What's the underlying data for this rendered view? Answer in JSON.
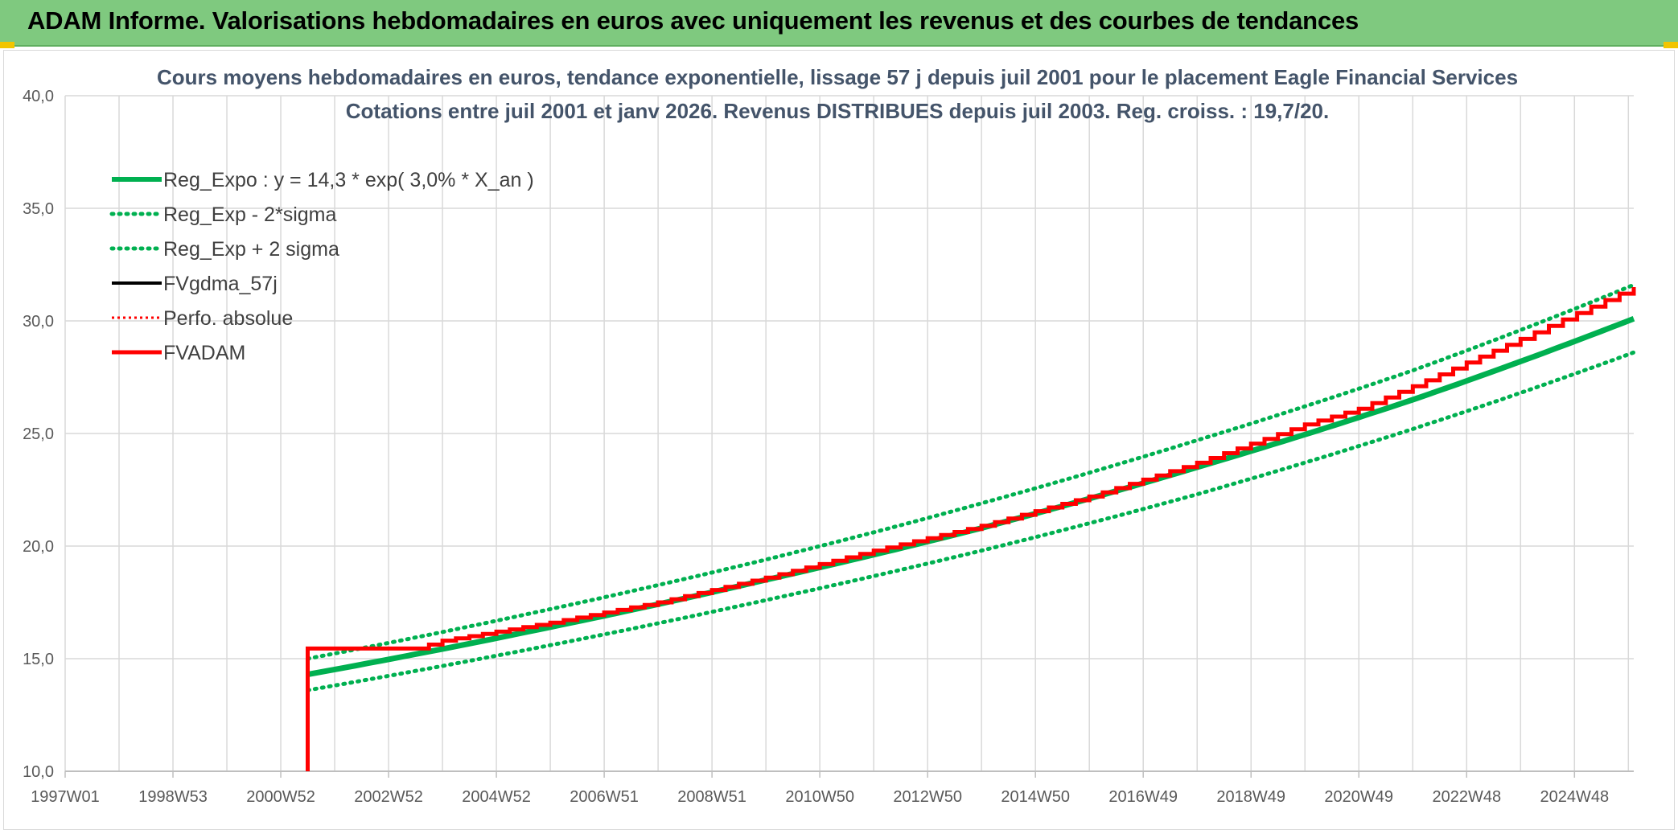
{
  "header": {
    "title": "ADAM Informe. Valorisations hebdomadaires en euros avec uniquement les revenus et des courbes de tendances"
  },
  "colors": {
    "banner": "#7fc97f",
    "green": "#00b050",
    "red": "#ff0000",
    "black": "#000000",
    "title": "#44546a"
  },
  "chart_data": {
    "type": "line",
    "title": "Cours moyens hebdomadaires en euros, tendance exponentielle, lissage 57 j depuis juil 2001 pour le placement Eagle Financial Services",
    "subtitle": "Cotations entre juil 2001 et janv 2026. Revenus DISTRIBUES depuis juil 2003. Reg. croiss. : 19,7/20.",
    "xlabel": "",
    "ylabel": "",
    "x_ticks": [
      "1997W01",
      "1998W53",
      "2000W52",
      "2002W52",
      "2004W52",
      "2006W51",
      "2008W51",
      "2010W50",
      "2012W50",
      "2014W50",
      "2016W49",
      "2018W49",
      "2020W49",
      "2022W48",
      "2024W48"
    ],
    "x_range_years": [
      1997.0,
      2026.1
    ],
    "y_ticks": [
      "10,0",
      "15,0",
      "20,0",
      "25,0",
      "30,0",
      "35,0",
      "40,0"
    ],
    "ylim": [
      10,
      40
    ],
    "grid": true,
    "legend_position": "top-left",
    "legend": [
      "Reg_Expo : y = 14,3 * exp( 3,0% *  X_an )",
      "Reg_Exp - 2*sigma",
      "Reg_Exp + 2 sigma",
      "FVgdma_57j",
      "Perfo. absolue",
      "FVADAM"
    ],
    "series": [
      {
        "name": "Reg_Expo : y = 14,3 * exp( 3,0% *  X_an )",
        "style": "solid-green",
        "x": [
          2001.5,
          2006,
          2010,
          2014,
          2018,
          2022,
          2026.1
        ],
        "y": [
          14.3,
          16.4,
          18.5,
          20.8,
          23.5,
          26.5,
          30.1
        ]
      },
      {
        "name": "Reg_Exp - 2*sigma",
        "style": "dotted-green",
        "x": [
          2001.5,
          2006,
          2010,
          2014,
          2018,
          2022,
          2026.1
        ],
        "y": [
          13.6,
          15.6,
          17.6,
          19.8,
          22.3,
          25.2,
          28.6
        ]
      },
      {
        "name": "Reg_Exp + 2 sigma",
        "style": "dotted-green",
        "x": [
          2001.5,
          2006,
          2010,
          2014,
          2018,
          2022,
          2026.1
        ],
        "y": [
          15.0,
          17.2,
          19.4,
          21.9,
          24.7,
          27.8,
          31.6
        ]
      },
      {
        "name": "FVADAM",
        "style": "solid-red",
        "x": [
          2001.5,
          2001.5,
          2003.5,
          2004,
          2006,
          2008,
          2010,
          2012,
          2014,
          2016,
          2018,
          2020,
          2021,
          2022,
          2024,
          2026.1
        ],
        "y": [
          10.0,
          15.45,
          15.45,
          15.8,
          16.6,
          17.5,
          18.6,
          19.8,
          20.9,
          22.2,
          23.7,
          25.4,
          26.1,
          27.1,
          29.2,
          31.5
        ]
      }
    ]
  }
}
